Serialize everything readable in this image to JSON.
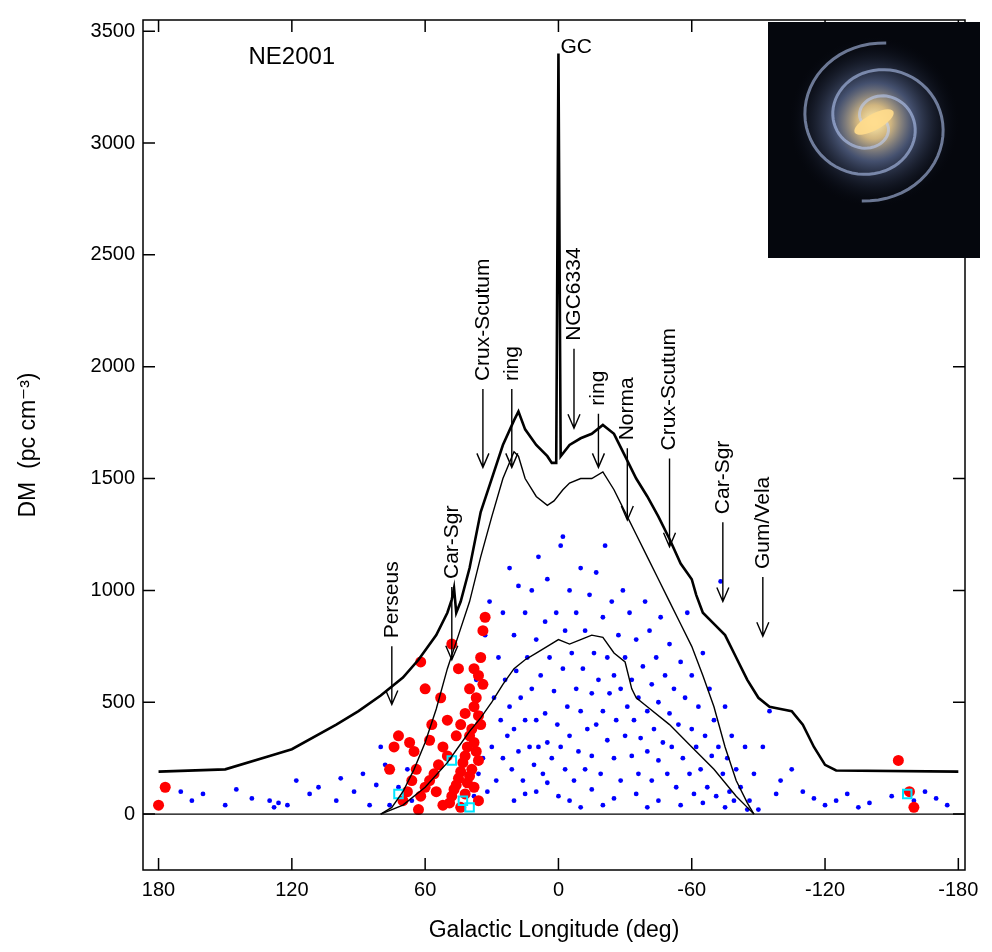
{
  "chart_data": {
    "type": "scatter",
    "x_label": "Galactic Longitude (deg)",
    "y_label": "DM  (pc cm⁻³)",
    "xlim": [
      187,
      -183
    ],
    "xticks": [
      180,
      120,
      60,
      0,
      -60,
      -120,
      -180
    ],
    "ylim": [
      -250,
      3550
    ],
    "yticks": [
      0,
      500,
      1000,
      1500,
      2000,
      2500,
      3000,
      3500
    ],
    "grid": false,
    "series": [
      {
        "type": "scatter",
        "color": "#0000ff",
        "marker": "dot",
        "x": [
          170,
          165,
          160,
          150,
          145,
          138,
          130,
          128,
          126,
          122,
          118,
          112,
          108,
          100,
          98,
          92,
          88,
          85,
          82,
          80,
          78,
          76,
          72,
          68,
          66,
          62,
          58,
          46,
          44,
          42,
          40,
          38,
          37,
          36,
          35,
          34,
          33,
          32,
          31,
          30,
          29,
          28,
          27,
          26,
          25,
          25,
          24,
          23,
          22,
          22,
          21,
          20,
          20,
          19,
          18,
          18,
          17,
          16,
          15,
          15,
          14,
          13,
          12,
          12,
          11,
          10,
          10,
          9,
          9,
          8,
          7,
          6,
          6,
          5,
          5,
          4,
          3,
          2,
          1,
          0.5,
          -1,
          -1,
          -2,
          -3,
          -3,
          -4,
          -5,
          -5,
          -6,
          -7,
          -8,
          -8,
          -9,
          -10,
          -10,
          -11,
          -12,
          -12,
          -13,
          -14,
          -15,
          -15,
          -16,
          -17,
          -17,
          -18,
          -19,
          -20,
          -20,
          -21,
          -22,
          -22,
          -23,
          -24,
          -25,
          -25,
          -26,
          -27,
          -28,
          -28,
          -29,
          -30,
          -30,
          -31,
          -32,
          -33,
          -33,
          -34,
          -35,
          -36,
          -36,
          -37,
          -38,
          -39,
          -40,
          -40,
          -41,
          -42,
          -42,
          -43,
          -44,
          -45,
          -45,
          -46,
          -47,
          -48,
          -49,
          -50,
          -50,
          -51,
          -52,
          -53,
          -54,
          -55,
          -56,
          -57,
          -58,
          -59,
          -60,
          -60,
          -61,
          -62,
          -63,
          -64,
          -65,
          -66,
          -67,
          -68,
          -69,
          -70,
          -71,
          -72,
          -73,
          -74,
          -75,
          -76,
          -77,
          -78,
          -79,
          -80,
          -82,
          -84,
          -86,
          -88,
          -90,
          20,
          15,
          10,
          5,
          0,
          -5,
          -10,
          -15,
          -20,
          -25,
          -35,
          -40,
          -45,
          -55,
          -65,
          -75,
          -85,
          -2,
          -92,
          -95,
          -98,
          -100,
          -105,
          -110,
          -115,
          -120,
          -125,
          -130,
          -135,
          -140,
          -150,
          -160,
          -165,
          -170,
          -175
        ],
        "values": [
          100,
          60,
          90,
          40,
          110,
          70,
          60,
          30,
          50,
          40,
          150,
          90,
          120,
          60,
          160,
          100,
          180,
          40,
          130,
          300,
          220,
          40,
          120,
          200,
          60,
          80,
          150,
          120,
          200,
          300,
          150,
          80,
          600,
          180,
          450,
          250,
          800,
          100,
          950,
          300,
          520,
          150,
          700,
          420,
          900,
          250,
          600,
          350,
          1100,
          480,
          200,
          800,
          380,
          640,
          1020,
          280,
          520,
          150,
          900,
          420,
          700,
          300,
          1000,
          560,
          220,
          780,
          420,
          1150,
          300,
          620,
          180,
          860,
          450,
          1050,
          320,
          700,
          250,
          550,
          900,
          400,
          1200,
          300,
          650,
          820,
          200,
          480,
          1000,
          350,
          720,
          150,
          560,
          900,
          280,
          1100,
          460,
          650,
          200,
          820,
          380,
          980,
          540,
          260,
          720,
          1080,
          400,
          600,
          180,
          880,
          460,
          1200,
          330,
          700,
          540,
          950,
          250,
          620,
          420,
          800,
          150,
          560,
          1000,
          350,
          700,
          480,
          900,
          260,
          600,
          420,
          780,
          180,
          520,
          340,
          660,
          950,
          280,
          460,
          820,
          150,
          580,
          380,
          700,
          240,
          500,
          880,
          320,
          620,
          180,
          450,
          760,
          300,
          560,
          120,
          400,
          680,
          250,
          520,
          900,
          180,
          380,
          620,
          90,
          300,
          480,
          200,
          720,
          350,
          120,
          560,
          260,
          420,
          80,
          300,
          1040,
          180,
          480,
          250,
          100,
          350,
          60,
          200,
          120,
          300,
          60,
          180,
          20,
          60,
          90,
          100,
          140,
          80,
          60,
          30,
          110,
          40,
          70,
          90,
          30,
          60,
          40,
          50,
          30,
          20,
          1240,
          300,
          460,
          90,
          150,
          200,
          100,
          70,
          40,
          60,
          90,
          30,
          50,
          80,
          60,
          100,
          70,
          40
        ]
      },
      {
        "type": "scatter",
        "color": "#ff0000",
        "marker": "circle",
        "x": [
          33,
          35,
          36,
          34,
          37,
          38,
          36,
          35,
          39,
          40,
          38,
          41,
          37,
          42,
          36,
          43,
          39,
          44,
          40,
          45,
          41,
          46,
          38,
          47,
          42,
          48,
          36,
          49,
          44,
          50,
          52,
          54,
          56,
          58,
          55,
          60,
          62,
          64,
          66,
          68,
          70,
          72,
          74,
          65,
          57,
          53,
          62,
          60,
          45,
          48,
          50,
          58,
          63,
          52,
          67,
          76,
          40,
          42,
          44,
          46,
          38,
          34,
          180,
          177,
          -153,
          -158,
          -160
        ],
        "values": [
          880,
          700,
          620,
          580,
          520,
          480,
          440,
          400,
          380,
          350,
          320,
          300,
          280,
          260,
          240,
          230,
          200,
          190,
          170,
          160,
          140,
          130,
          120,
          110,
          90,
          80,
          60,
          50,
          30,
          260,
          300,
          220,
          180,
          150,
          100,
          120,
          80,
          200,
          150,
          100,
          60,
          350,
          300,
          280,
          400,
          520,
          680,
          560,
          650,
          760,
          420,
          330,
          20,
          40,
          320,
          200,
          560,
          450,
          400,
          350,
          650,
          820,
          40,
          120,
          240,
          100,
          30
        ]
      },
      {
        "type": "scatter",
        "color": "#00e5ff",
        "marker": "square",
        "x": [
          72,
          48,
          43,
          40,
          -157
        ],
        "values": [
          90,
          240,
          60,
          30,
          90
        ]
      },
      {
        "type": "line",
        "color": "#000000",
        "line_style": "thin",
        "x": [
          187,
          -183
        ],
        "values": [
          0,
          0
        ]
      },
      {
        "type": "line",
        "color": "#000000",
        "line_style": "thin",
        "x": [
          80,
          70,
          60,
          50,
          45,
          40,
          35,
          30,
          25,
          20,
          15,
          10,
          5,
          0,
          -5,
          -10,
          -15,
          -20,
          -25,
          -30,
          -33,
          -35,
          -40,
          -50,
          -60,
          -70,
          -80,
          -85,
          -88
        ],
        "values": [
          0,
          40,
          120,
          230,
          300,
          370,
          430,
          500,
          580,
          650,
          690,
          720,
          750,
          780,
          760,
          780,
          800,
          790,
          720,
          680,
          560,
          520,
          480,
          400,
          300,
          200,
          80,
          30,
          0
        ]
      },
      {
        "type": "line",
        "color": "#000000",
        "line_style": "thin",
        "x": [
          80,
          75,
          70,
          65,
          60,
          55,
          50,
          45,
          40,
          35,
          30,
          25,
          20,
          18,
          15,
          10,
          5,
          2,
          -2,
          -5,
          -10,
          -15,
          -20,
          -25,
          -30,
          -35,
          -40,
          -45,
          -50,
          -55,
          -60,
          -65,
          -70,
          -75,
          -80,
          -85,
          -88
        ],
        "values": [
          0,
          30,
          100,
          200,
          320,
          470,
          650,
          800,
          950,
          1150,
          1330,
          1500,
          1620,
          1600,
          1500,
          1420,
          1380,
          1400,
          1450,
          1480,
          1500,
          1500,
          1530,
          1450,
          1350,
          1250,
          1150,
          1050,
          950,
          850,
          750,
          620,
          480,
          300,
          150,
          50,
          0
        ]
      },
      {
        "type": "line",
        "color": "#000000",
        "line_style": "thick",
        "x": [
          180,
          150,
          130,
          120,
          100,
          90,
          80,
          70,
          63,
          55,
          50,
          48,
          47,
          46,
          44,
          40,
          35,
          30,
          25,
          20,
          18,
          15,
          10,
          5,
          3,
          1,
          0,
          -1,
          -5,
          -10,
          -15,
          -20,
          -25,
          -30,
          -35,
          -40,
          -45,
          -50,
          -55,
          -60,
          -62,
          -65,
          -70,
          -75,
          -80,
          -85,
          -90,
          -95,
          -100,
          -105,
          -110,
          -115,
          -120,
          -125,
          -180
        ],
        "values": [
          190,
          200,
          260,
          290,
          400,
          460,
          530,
          610,
          690,
          800,
          900,
          960,
          1010,
          900,
          950,
          1100,
          1350,
          1500,
          1650,
          1760,
          1800,
          1720,
          1650,
          1600,
          1570,
          1570,
          3400,
          1600,
          1650,
          1680,
          1700,
          1740,
          1700,
          1600,
          1500,
          1420,
          1330,
          1230,
          1120,
          1050,
          980,
          900,
          850,
          800,
          700,
          600,
          520,
          480,
          470,
          460,
          400,
          300,
          220,
          195,
          190
        ]
      }
    ],
    "annotations": [
      {
        "text": "NE2001",
        "x": 120,
        "y": 3385
      },
      {
        "text": "GC",
        "x": -8,
        "y": 3430
      },
      {
        "text": "Perseus",
        "x": 75,
        "y_tip": 490,
        "y_tail": 750
      },
      {
        "text": "Car-Sgr",
        "x": 48,
        "y_tip": 690,
        "y_tail": 1015
      },
      {
        "text": "Crux-Scutum",
        "x": 34,
        "y_tip": 1550,
        "y_tail": 1900
      },
      {
        "text": "ring",
        "x": 21,
        "y_tip": 1550,
        "y_tail": 1900
      },
      {
        "text": "NGC6334",
        "x": -7,
        "y_tip": 1725,
        "y_tail": 2080
      },
      {
        "text": "ring",
        "x": -18,
        "y_tip": 1550,
        "y_tail": 1790
      },
      {
        "text": "Norma",
        "x": -31,
        "y_tip": 1315,
        "y_tail": 1635
      },
      {
        "text": "Crux-Scutum",
        "x": -50,
        "y_tip": 1195,
        "y_tail": 1590
      },
      {
        "text": "Car-Sgr",
        "x": -74,
        "y_tip": 950,
        "y_tail": 1305
      },
      {
        "text": "Gum/Vela",
        "x": -92,
        "y_tip": 795,
        "y_tail": 1060
      }
    ]
  }
}
